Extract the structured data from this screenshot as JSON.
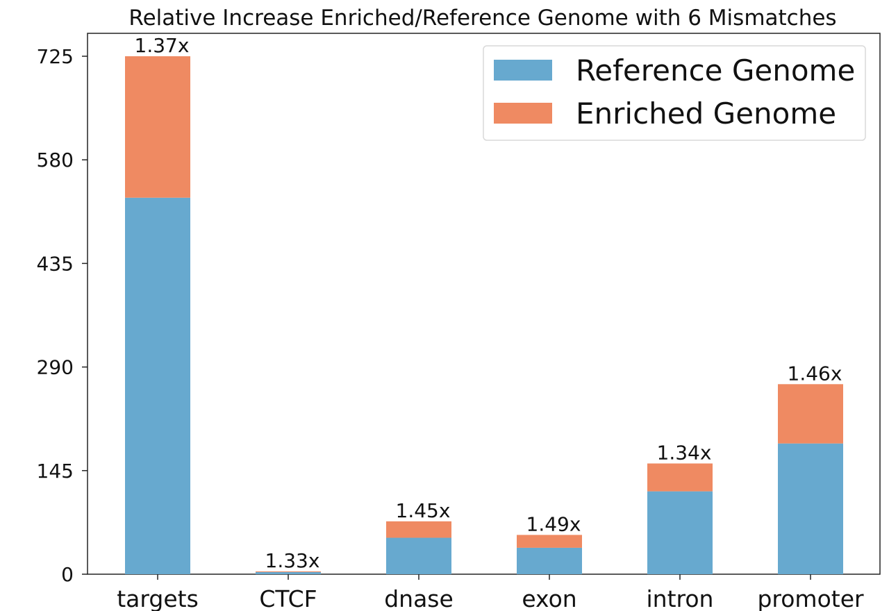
{
  "chart_data": {
    "type": "bar",
    "stacked": true,
    "title": "Relative Increase Enriched/Reference Genome with 6 Mismatches",
    "xlabel": "",
    "ylabel": "",
    "categories": [
      "targets",
      "CTCF",
      "dnase",
      "exon",
      "intron",
      "promoter"
    ],
    "series": [
      {
        "name": "Reference Genome",
        "color": "#67a9cf",
        "values": [
          527,
          3,
          51,
          37,
          116,
          183
        ]
      },
      {
        "name": "Enriched Genome",
        "color": "#ef8a62",
        "values": [
          198,
          1,
          23,
          18,
          39,
          83
        ]
      }
    ],
    "data_labels": [
      "1.37x",
      "1.33x",
      "1.45x",
      "1.49x",
      "1.34x",
      "1.46x"
    ],
    "ylim": [
      0,
      725
    ],
    "yticks": [
      0,
      145,
      290,
      435,
      580,
      725
    ],
    "grid": false,
    "legend_position": "top-right"
  }
}
